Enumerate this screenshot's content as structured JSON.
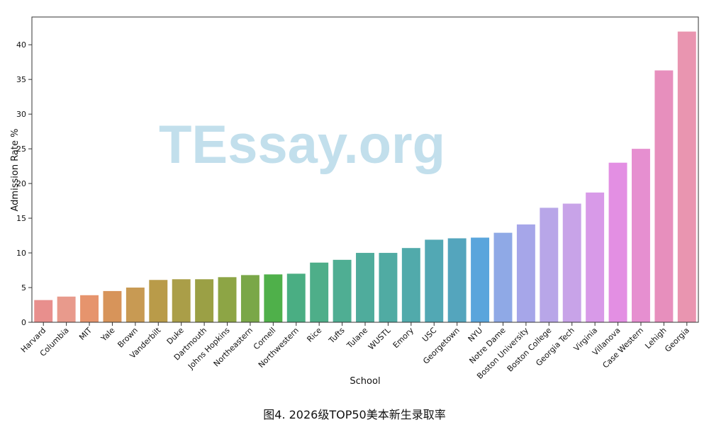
{
  "chart_data": {
    "type": "bar",
    "xlabel": "School",
    "ylabel": "Admission Rate %",
    "ylim": [
      0,
      44
    ],
    "yticks": [
      0,
      5,
      10,
      15,
      20,
      25,
      30,
      35,
      40
    ],
    "grid": false,
    "categories": [
      "Harvard",
      "Columbia",
      "MIT",
      "Yale",
      "Brown",
      "Vanderbilt",
      "Duke",
      "Dartmouth",
      "Johns Hopkins",
      "Northeastern",
      "Cornell",
      "Northwestern",
      "Rice",
      "Tufts",
      "Tulane",
      "WUSTL",
      "Emory",
      "USC",
      "Georgetown",
      "NYU",
      "Notre Dame",
      "Boston University",
      "Boston College",
      "Georgia Tech",
      "Virginia",
      "Villanova",
      "Case Western",
      "Lehigh",
      "Georgia"
    ],
    "values": [
      3.2,
      3.7,
      3.9,
      4.5,
      5.0,
      6.1,
      6.2,
      6.2,
      6.5,
      6.8,
      6.9,
      7.0,
      8.6,
      9.0,
      10.0,
      10.0,
      10.7,
      11.9,
      12.1,
      12.2,
      12.9,
      14.1,
      16.5,
      17.1,
      18.7,
      23.0,
      25.0,
      36.3,
      41.9
    ],
    "colors": [
      "#e88f8d",
      "#e89a8c",
      "#e6946d",
      "#d7945a",
      "#c89a53",
      "#b99b49",
      "#aa9e48",
      "#9ba045",
      "#8da545",
      "#7aa748",
      "#4fb04a",
      "#4aae83",
      "#4eae89",
      "#4fae93",
      "#4fac9c",
      "#50aba3",
      "#51aaab",
      "#52a8b4",
      "#54a5bd",
      "#5aa5dc",
      "#8fa9e6",
      "#a6a6e9",
      "#b8a6e8",
      "#c8a3e8",
      "#d89ae8",
      "#e38fe3",
      "#e68fd0",
      "#e78fbd",
      "#e995b0"
    ]
  },
  "watermark": "TEssay.org",
  "caption": "图4. 2026级TOP50美本新生录取率"
}
